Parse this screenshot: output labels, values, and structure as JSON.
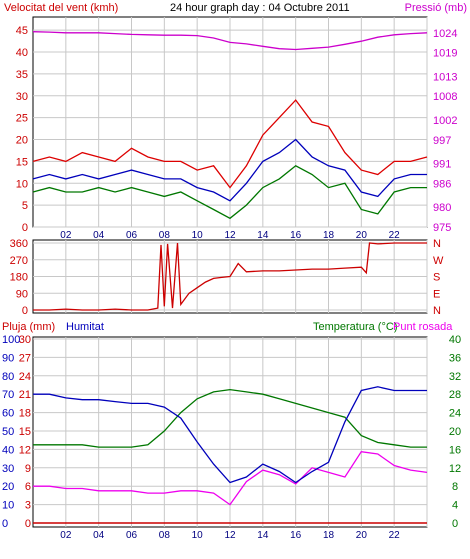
{
  "chart_data": [
    {
      "type": "line",
      "title": "24 hour graph day : 04 Octubre 2011",
      "left_axis_label": "Velocitat del vent (kmh)",
      "right_axis_label": "Pressió (mb)",
      "left_ticks": [
        "0",
        "5",
        "10",
        "15",
        "20",
        "25",
        "30",
        "35",
        "40",
        "45"
      ],
      "right_ticks": [
        "975",
        "980",
        "986",
        "991",
        "997",
        "1002",
        "1008",
        "1013",
        "1019",
        "1024"
      ],
      "x_ticks": [
        "02",
        "04",
        "06",
        "08",
        "10",
        "12",
        "14",
        "16",
        "18",
        "20",
        "22"
      ],
      "ylim_left": [
        0,
        48
      ],
      "ylim_right": [
        975,
        1028
      ],
      "grid": true,
      "colors": {
        "gust": "#dd0000",
        "wind_avg": "#0000bb",
        "wind_min": "#007700",
        "pressure": "#cc00cc",
        "axis_left": "#cc0000",
        "axis_right": "#cc00cc"
      },
      "x_hours": [
        0,
        1,
        2,
        3,
        4,
        5,
        6,
        7,
        8,
        9,
        10,
        11,
        12,
        13,
        14,
        15,
        16,
        17,
        18,
        19,
        20,
        21,
        22,
        23,
        24
      ],
      "series": [
        {
          "key": "gust",
          "values": [
            15,
            16,
            15,
            17,
            16,
            15,
            18,
            16,
            15,
            15,
            13,
            14,
            9,
            14,
            21,
            25,
            29,
            24,
            23,
            17,
            13,
            12,
            15,
            15,
            16
          ]
        },
        {
          "key": "wind_avg",
          "values": [
            11,
            12,
            11,
            12,
            11,
            12,
            13,
            12,
            11,
            11,
            9,
            8,
            6,
            10,
            15,
            17,
            20,
            16,
            14,
            13,
            8,
            7,
            11,
            12,
            12
          ]
        },
        {
          "key": "wind_min",
          "values": [
            8,
            9,
            8,
            8,
            9,
            8,
            9,
            8,
            7,
            8,
            6,
            4,
            2,
            5,
            9,
            11,
            14,
            12,
            9,
            10,
            4,
            3,
            8,
            9,
            9
          ]
        },
        {
          "key": "pressure",
          "values": [
            1024.3,
            1024.2,
            1024,
            1024,
            1024,
            1023.8,
            1023.6,
            1023.5,
            1023.4,
            1023.4,
            1023.3,
            1022.7,
            1021.6,
            1021.2,
            1020.6,
            1020,
            1019.8,
            1020.1,
            1020.4,
            1021.1,
            1021.9,
            1022.9,
            1023.5,
            1023.8,
            1024
          ]
        }
      ]
    },
    {
      "type": "line",
      "title": "",
      "left_ticks": [
        "0",
        "90",
        "180",
        "270",
        "360"
      ],
      "right_ticks": [
        "N",
        "E",
        "S",
        "W",
        "N"
      ],
      "ylim": [
        0,
        360
      ],
      "grid": true,
      "color": "#cc0000",
      "x_hours": [
        0,
        1,
        2,
        3,
        4,
        5,
        6,
        7,
        7.6,
        7.8,
        8,
        8.2,
        8.5,
        8.8,
        9,
        9.5,
        10,
        10.5,
        11,
        11.5,
        12,
        12.5,
        13,
        14,
        15,
        16,
        17,
        18,
        19,
        20,
        20.3,
        20.5,
        21,
        22,
        23,
        24
      ],
      "values": [
        0,
        0,
        5,
        0,
        0,
        5,
        0,
        0,
        10,
        350,
        20,
        355,
        10,
        360,
        30,
        90,
        120,
        150,
        170,
        175,
        180,
        250,
        205,
        210,
        210,
        215,
        220,
        220,
        225,
        230,
        200,
        360,
        355,
        360,
        360,
        360
      ]
    },
    {
      "type": "line",
      "title": "",
      "left_axis_label": "Pluja (mm)",
      "left_axis_label_2": "Humitat",
      "right_axis_label": "Temperatura (°C)",
      "right_axis_label_2": "Punt rosada",
      "rain_ticks": [
        "0",
        "3",
        "6",
        "9",
        "12",
        "15",
        "18",
        "21",
        "24",
        "27",
        "30"
      ],
      "humidity_ticks": [
        "0",
        "10",
        "20",
        "30",
        "40",
        "50",
        "60",
        "70",
        "80",
        "90",
        "100"
      ],
      "temp_ticks": [
        "0",
        "4",
        "8",
        "12",
        "16",
        "20",
        "24",
        "28",
        "32",
        "36",
        "40"
      ],
      "x_ticks": [
        "02",
        "04",
        "06",
        "08",
        "10",
        "12",
        "14",
        "16",
        "18",
        "20",
        "22"
      ],
      "ylim_humidity": [
        0,
        100
      ],
      "ylim_temp": [
        0,
        40
      ],
      "grid": true,
      "colors": {
        "rain": "#cc0000",
        "humidity": "#0000bb",
        "temperature": "#007700",
        "dewpoint": "#ee00ee",
        "axis_left": "#cc0000",
        "axis_right": "#007700"
      },
      "x_hours": [
        0,
        1,
        2,
        3,
        4,
        5,
        6,
        7,
        8,
        9,
        10,
        11,
        12,
        13,
        14,
        15,
        16,
        17,
        18,
        19,
        20,
        21,
        22,
        23,
        24
      ],
      "series": [
        {
          "key": "rain",
          "values": [
            0,
            0,
            0,
            0,
            0,
            0,
            0,
            0,
            0,
            0,
            0,
            0,
            0,
            0,
            0,
            0,
            0,
            0,
            0,
            0,
            0,
            0,
            0,
            0,
            0
          ]
        },
        {
          "key": "humidity",
          "values": [
            70,
            70,
            68,
            67,
            67,
            66,
            65,
            65,
            63,
            57,
            44,
            32,
            22,
            25,
            32,
            28,
            22,
            28,
            33,
            55,
            72,
            74,
            72,
            72,
            72
          ]
        },
        {
          "key": "temperature",
          "values": [
            17,
            17,
            17,
            17,
            16.5,
            16.5,
            16.5,
            17,
            20,
            24,
            27,
            28.5,
            29,
            28.5,
            28,
            27,
            26,
            25,
            24,
            23,
            19,
            17.5,
            17,
            16.5,
            16.5
          ]
        },
        {
          "key": "dewpoint",
          "values": [
            8,
            8,
            7.5,
            7.5,
            7,
            7,
            7,
            6.5,
            6.5,
            7,
            7,
            6.5,
            4,
            9,
            11.5,
            10.5,
            8.5,
            12,
            11,
            10,
            15.5,
            15,
            12.5,
            11.5,
            11
          ]
        }
      ]
    }
  ]
}
